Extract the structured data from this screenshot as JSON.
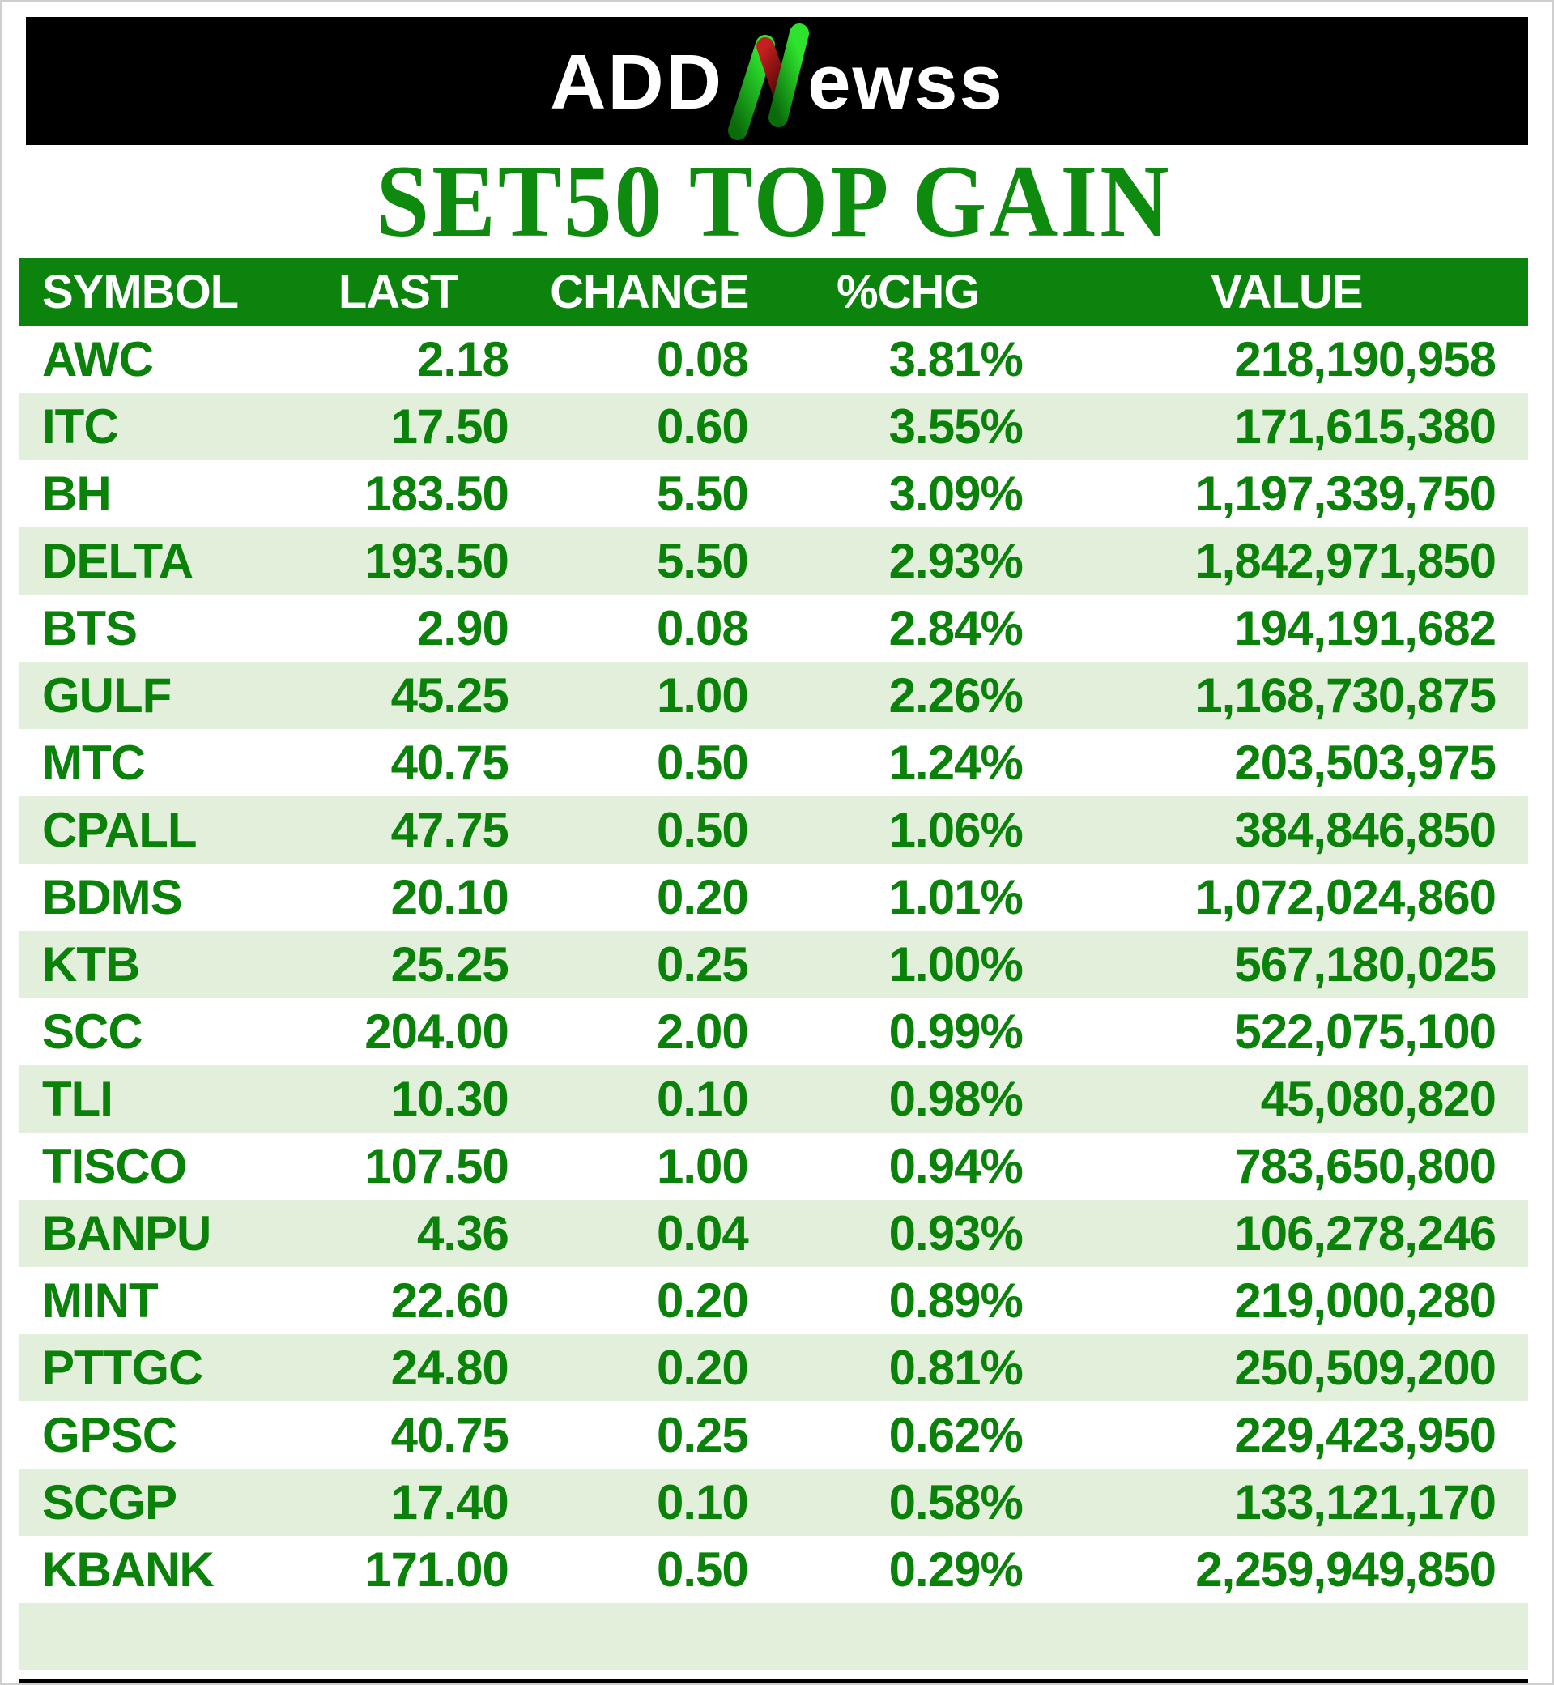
{
  "brand": {
    "logo_text_left": "ADD",
    "logo_letter_mark": "N",
    "logo_text_right": "ewss",
    "banner_bg": "#000000",
    "logo_text_color": "#ffffff",
    "mark_green_bright": "#2ee22e",
    "mark_green_dark": "#0a6b0a",
    "mark_red_bright": "#c42020",
    "mark_red_dark": "#5d0a0a"
  },
  "page_title": "SET50 TOP GAIN",
  "colors": {
    "title_green": "#0e8a0e",
    "header_bg": "#0c830c",
    "header_text": "#ffffff",
    "data_text_green": "#0a820a",
    "row_bg": "#ffffff",
    "row_alt_bg": "#e2efda"
  },
  "chart_data": {
    "type": "table",
    "title": "SET50 TOP GAIN",
    "columns": [
      "SYMBOL",
      "LAST",
      "CHANGE",
      "%CHG",
      "VALUE"
    ],
    "rows": [
      [
        "AWC",
        "2.18",
        "0.08",
        "3.81%",
        "218,190,958"
      ],
      [
        "ITC",
        "17.50",
        "0.60",
        "3.55%",
        "171,615,380"
      ],
      [
        "BH",
        "183.50",
        "5.50",
        "3.09%",
        "1,197,339,750"
      ],
      [
        "DELTA",
        "193.50",
        "5.50",
        "2.93%",
        "1,842,971,850"
      ],
      [
        "BTS",
        "2.90",
        "0.08",
        "2.84%",
        "194,191,682"
      ],
      [
        "GULF",
        "45.25",
        "1.00",
        "2.26%",
        "1,168,730,875"
      ],
      [
        "MTC",
        "40.75",
        "0.50",
        "1.24%",
        "203,503,975"
      ],
      [
        "CPALL",
        "47.75",
        "0.50",
        "1.06%",
        "384,846,850"
      ],
      [
        "BDMS",
        "20.10",
        "0.20",
        "1.01%",
        "1,072,024,860"
      ],
      [
        "KTB",
        "25.25",
        "0.25",
        "1.00%",
        "567,180,025"
      ],
      [
        "SCC",
        "204.00",
        "2.00",
        "0.99%",
        "522,075,100"
      ],
      [
        "TLI",
        "10.30",
        "0.10",
        "0.98%",
        "45,080,820"
      ],
      [
        "TISCO",
        "107.50",
        "1.00",
        "0.94%",
        "783,650,800"
      ],
      [
        "BANPU",
        "4.36",
        "0.04",
        "0.93%",
        "106,278,246"
      ],
      [
        "MINT",
        "22.60",
        "0.20",
        "0.89%",
        "219,000,280"
      ],
      [
        "PTTGC",
        "24.80",
        "0.20",
        "0.81%",
        "250,509,200"
      ],
      [
        "GPSC",
        "40.75",
        "0.25",
        "0.62%",
        "229,423,950"
      ],
      [
        "SCGP",
        "17.40",
        "0.10",
        "0.58%",
        "133,121,170"
      ],
      [
        "KBANK",
        "171.00",
        "0.50",
        "0.29%",
        "2,259,949,850"
      ]
    ]
  }
}
